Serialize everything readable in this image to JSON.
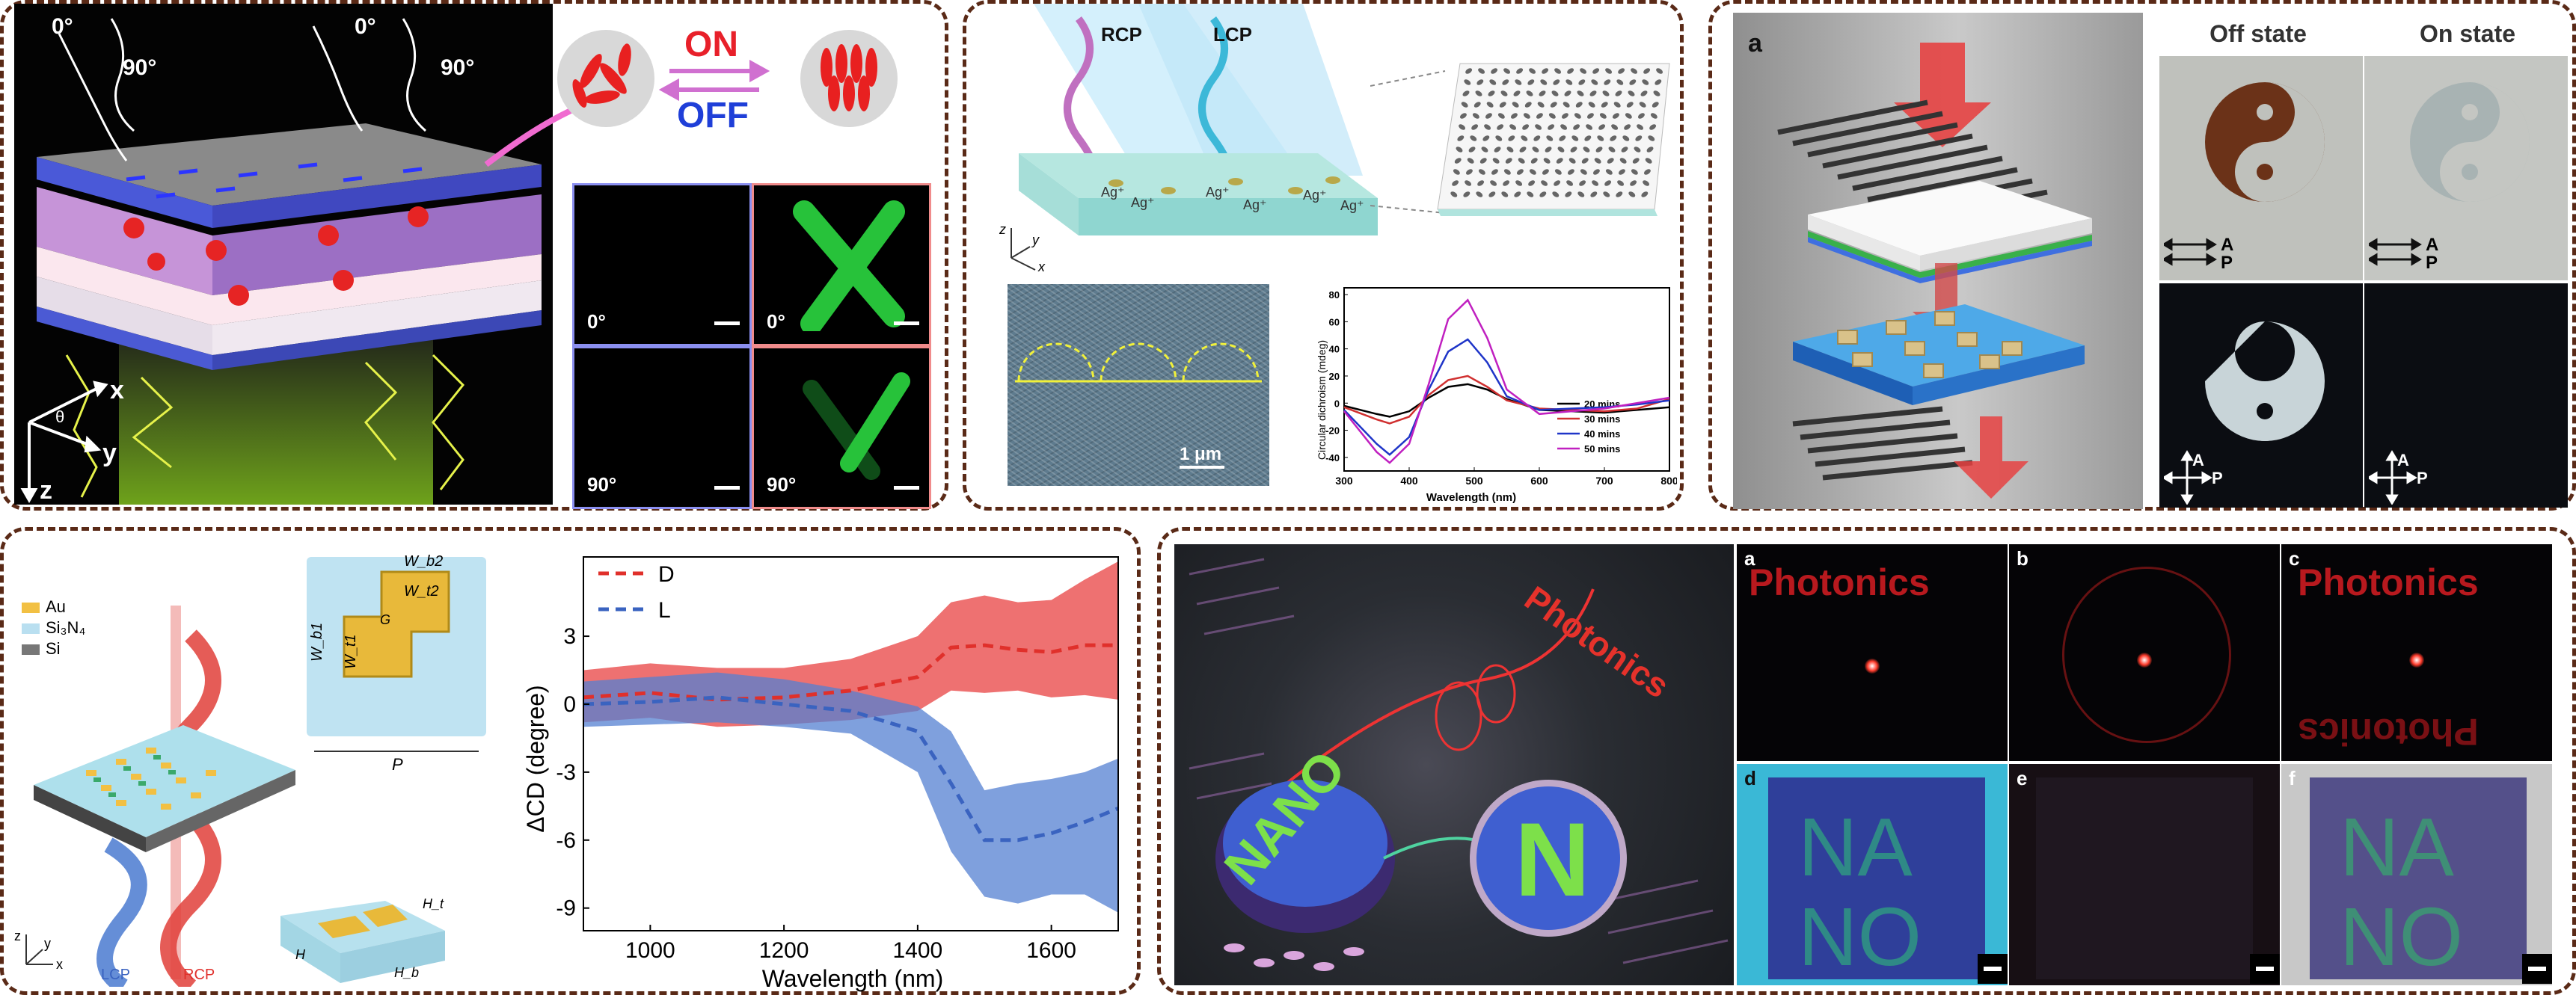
{
  "panel1": {
    "angles": [
      "0°",
      "90°",
      "0°",
      "90°"
    ],
    "on": "ON",
    "off": "OFF",
    "micro_labels": [
      "0°",
      "90°",
      "0°",
      "90°"
    ],
    "axes": {
      "x": "x",
      "y": "y",
      "z": "z",
      "theta": "θ"
    },
    "colors": {
      "on": "#e8202a",
      "off": "#1f3fd8",
      "cross": "#27c23a"
    }
  },
  "panel2": {
    "rcp": "RCP",
    "lcp": "LCP",
    "ag": [
      "Ag⁺",
      "Ag⁺",
      "Ag⁺",
      "Ag⁺",
      "Ag⁺",
      "Ag⁺"
    ],
    "axes": {
      "x": "x",
      "y": "y",
      "z": "z"
    },
    "scale": "1 μm",
    "chart_data": {
      "type": "line",
      "xlabel": "Wavelength (nm)",
      "ylabel": "Circular dichroism (mdeg)",
      "xticks": [
        "300",
        "400",
        "500",
        "600",
        "700",
        "800"
      ],
      "yticks": [
        "-40",
        "-20",
        "0",
        "20",
        "40",
        "60",
        "80"
      ],
      "xlim": [
        300,
        800
      ],
      "ylim": [
        -50,
        85
      ],
      "x": [
        300,
        350,
        370,
        400,
        430,
        460,
        490,
        520,
        550,
        600,
        650,
        700,
        750,
        800
      ],
      "series": [
        {
          "name": "20 mins",
          "color": "#000000",
          "values": [
            -2,
            -8,
            -10,
            -6,
            4,
            12,
            14,
            10,
            3,
            -5,
            -6,
            -7,
            -5,
            -3
          ]
        },
        {
          "name": "30 mins",
          "color": "#d03030",
          "values": [
            -3,
            -12,
            -15,
            -10,
            6,
            17,
            20,
            12,
            2,
            -4,
            -5,
            -6,
            -4,
            3
          ]
        },
        {
          "name": "40 mins",
          "color": "#1f35c8",
          "values": [
            -5,
            -30,
            -38,
            -25,
            10,
            38,
            47,
            30,
            5,
            -5,
            -4,
            -3,
            -1,
            2
          ]
        },
        {
          "name": "50 mins",
          "color": "#c020c0",
          "values": [
            -6,
            -36,
            -44,
            -30,
            14,
            62,
            76,
            48,
            10,
            -8,
            -6,
            -4,
            0,
            4
          ]
        }
      ]
    }
  },
  "panel3": {
    "tag": "a",
    "off_state": "Off state",
    "on_state": "On state",
    "pol": [
      "A",
      "P"
    ]
  },
  "panel4": {
    "legend": [
      "Au",
      "Si₃N₄",
      "Si"
    ],
    "legend_colors": [
      "#f2c043",
      "#b9dff0",
      "#777777"
    ],
    "dims": [
      "W_b2",
      "W_t2",
      "G",
      "W_b1",
      "W_t1",
      "P",
      "H_t",
      "H",
      "H_b"
    ],
    "lcp": "LCP",
    "rcp": "RCP",
    "axes": {
      "x": "x",
      "y": "y",
      "z": "z"
    },
    "chart_data": {
      "type": "line",
      "xlabel": "Wavelength (nm)",
      "ylabel": "ΔCD (degree)",
      "xticks": [
        "1000",
        "1200",
        "1400",
        "1600"
      ],
      "yticks": [
        "3",
        "0",
        "-3",
        "-6",
        "-9"
      ],
      "xlim": [
        900,
        1700
      ],
      "ylim": [
        -10,
        6.5
      ],
      "x": [
        900,
        1000,
        1100,
        1200,
        1300,
        1400,
        1450,
        1500,
        1550,
        1600,
        1650,
        1700
      ],
      "series": [
        {
          "name": "D",
          "color": "#e0302b",
          "values": [
            0.3,
            0.5,
            0.2,
            0.3,
            0.6,
            1.2,
            2.5,
            2.6,
            2.4,
            2.3,
            2.6,
            2.6
          ],
          "upper": [
            1.5,
            1.8,
            1.6,
            1.6,
            2.0,
            3.0,
            4.5,
            4.8,
            4.5,
            4.6,
            5.5,
            6.3
          ],
          "lower": [
            -0.8,
            -0.6,
            -1.0,
            -0.9,
            -0.7,
            -0.3,
            0.6,
            0.5,
            0.6,
            0.3,
            0.4,
            0.2
          ]
        },
        {
          "name": "L",
          "color": "#3a63c0",
          "values": [
            0.0,
            0.1,
            0.3,
            0.0,
            -0.3,
            -1.2,
            -3.5,
            -6.0,
            -6.0,
            -5.7,
            -5.2,
            -4.6
          ],
          "upper": [
            1.0,
            1.2,
            1.4,
            1.1,
            0.6,
            -0.1,
            -1.2,
            -3.8,
            -3.5,
            -3.3,
            -3.0,
            -2.4
          ],
          "lower": [
            -1.0,
            -0.9,
            -0.8,
            -1.0,
            -1.3,
            -3.0,
            -6.5,
            -8.5,
            -8.8,
            -8.4,
            -8.4,
            -9.2
          ]
        }
      ]
    }
  },
  "panel5": {
    "photonics": "Photonics",
    "nano": "NANO",
    "n": "N",
    "tags": [
      "a",
      "b",
      "c",
      "d",
      "e",
      "f"
    ],
    "na": "NA",
    "no": "NO"
  }
}
